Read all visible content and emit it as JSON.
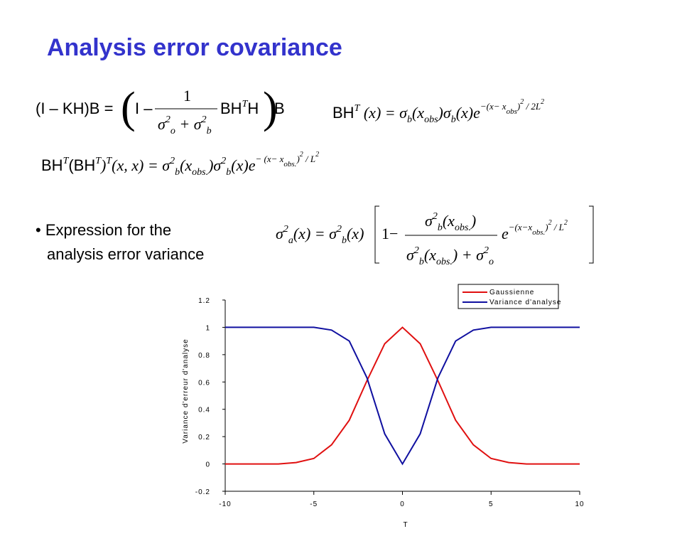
{
  "title": "Analysis error covariance",
  "formulas": {
    "f1": {
      "left": "(I – KH)B = ",
      "open": "(",
      "minus": "I –",
      "num": "1",
      "den": [
        "σ",
        "2",
        "o",
        " + σ",
        "2",
        "b"
      ],
      "mid": [
        "BH",
        "T",
        "H"
      ],
      "close": ")",
      "right": "B"
    },
    "f2": [
      "BH",
      "T",
      " (x) = σ",
      "b",
      "(x",
      "obs",
      ")σ",
      "b",
      "(x)e",
      "−(x− x",
      "obs",
      ")",
      "2",
      " / 2L",
      "2"
    ],
    "f3": [
      "BH",
      "T",
      "(BH",
      "T",
      ")",
      "T",
      "(x, x) = σ",
      "2",
      "b",
      "(x",
      "obs.",
      ")σ",
      "2",
      "b",
      "(x)e",
      "− (x− x",
      "obs.",
      ")",
      "2",
      " / L",
      "2"
    ],
    "f4": {
      "left": [
        "σ",
        "2",
        "a",
        "(x) = σ",
        "2",
        "b",
        "(x)"
      ],
      "one": "1−",
      "num": [
        "σ",
        "2",
        "b",
        "(x",
        "obs.",
        ")"
      ],
      "den": [
        "σ",
        "2",
        "b",
        "(x",
        "obs.",
        ") + σ",
        "2",
        "o"
      ],
      "exp": [
        "e",
        "−(x−x",
        "obs.",
        ")",
        "2",
        " / L",
        "2"
      ]
    }
  },
  "bullet": [
    "• Expression for the",
    "analysis error variance"
  ],
  "chart_data": {
    "type": "line",
    "x": [
      -10,
      -9,
      -8,
      -7,
      -6,
      -5,
      -4,
      -3,
      -2,
      -1,
      0,
      1,
      2,
      3,
      4,
      5,
      6,
      7,
      8,
      9,
      10
    ],
    "series": [
      {
        "name": "Gaussienne",
        "color": "#e01010",
        "values": [
          0,
          0,
          0,
          0,
          0.01,
          0.04,
          0.14,
          0.32,
          0.61,
          0.88,
          1,
          0.88,
          0.61,
          0.32,
          0.14,
          0.04,
          0.01,
          0,
          0,
          0,
          0
        ]
      },
      {
        "name": "Variance d'analyse",
        "color": "#1010a0",
        "values": [
          1,
          1,
          1,
          1,
          1,
          1,
          0.98,
          0.9,
          0.63,
          0.22,
          0,
          0.22,
          0.63,
          0.9,
          0.98,
          1,
          1,
          1,
          1,
          1,
          1
        ]
      }
    ],
    "xlim": [
      -10,
      10
    ],
    "ylim": [
      -0.2,
      1.2
    ],
    "xticks": [
      -10,
      -5,
      0,
      5,
      10
    ],
    "yticks": [
      -0.2,
      0,
      0.2,
      0.4,
      0.6,
      0.8,
      1,
      1.2
    ],
    "xlabel": "T",
    "ylabel": "Variance d'erreur d'analyse",
    "legend": "top-right"
  }
}
